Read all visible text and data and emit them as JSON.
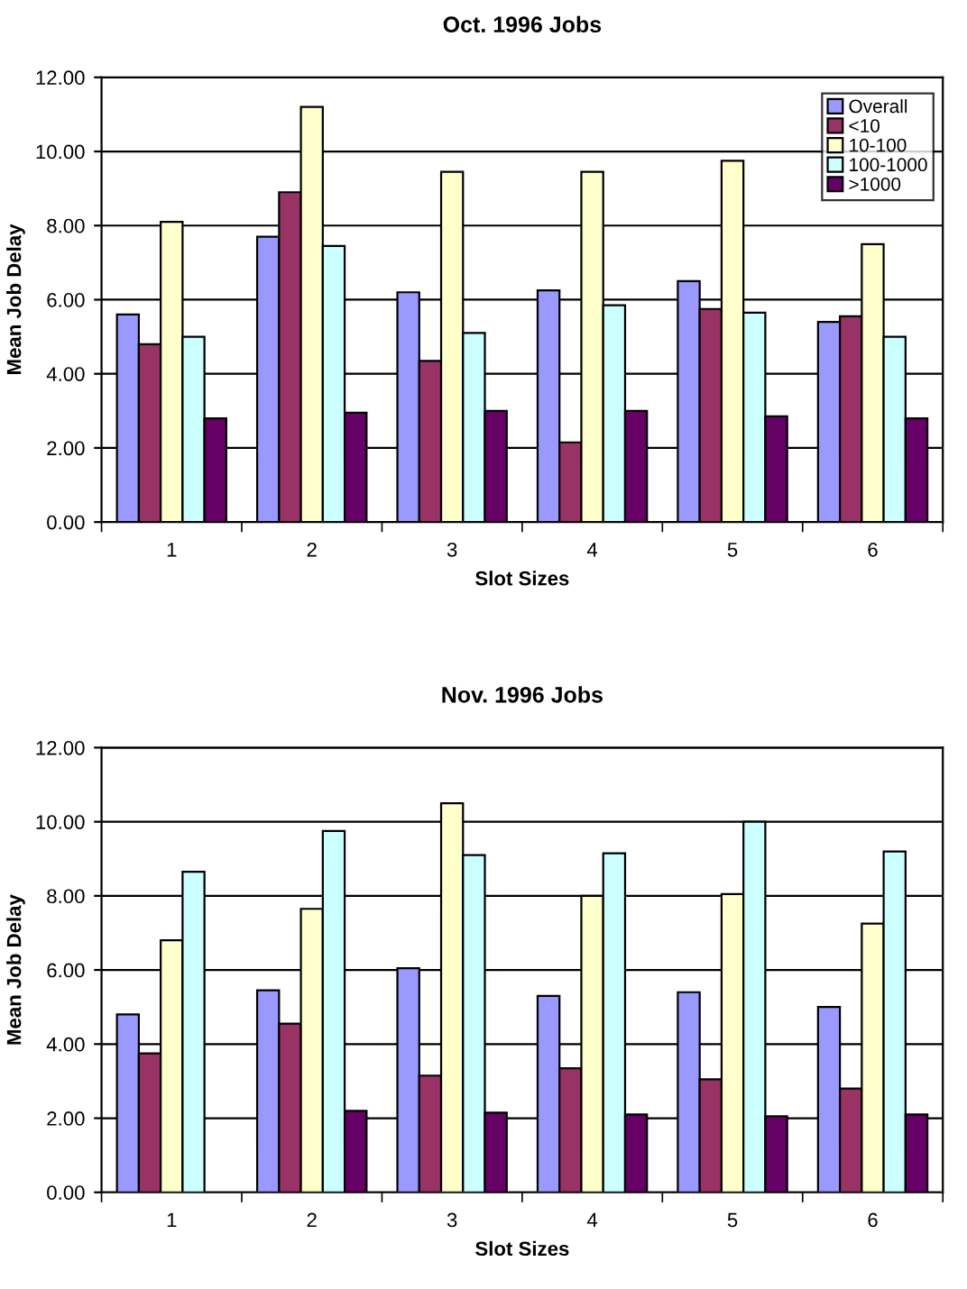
{
  "chart_data": [
    {
      "type": "bar",
      "title": "Oct. 1996 Jobs",
      "xlabel": "Slot Sizes",
      "ylabel": "Mean Job Delay",
      "categories": [
        "1",
        "2",
        "3",
        "4",
        "5",
        "6"
      ],
      "series": [
        {
          "name": "Overall",
          "color": "#9999ff",
          "values": [
            5.6,
            7.7,
            6.2,
            6.25,
            6.5,
            5.4
          ]
        },
        {
          "name": "<10",
          "color": "#993366",
          "values": [
            4.8,
            8.9,
            4.35,
            2.15,
            5.75,
            5.55
          ]
        },
        {
          "name": "10-100",
          "color": "#ffffcc",
          "values": [
            8.1,
            11.2,
            9.45,
            9.45,
            9.75,
            7.5
          ]
        },
        {
          "name": "100-1000",
          "color": "#ccffff",
          "values": [
            5.0,
            7.45,
            5.1,
            5.85,
            5.65,
            5.0
          ]
        },
        {
          "name": ">1000",
          "color": "#660066",
          "values": [
            2.8,
            2.95,
            3.0,
            3.0,
            2.85,
            2.8
          ]
        }
      ],
      "ylim": [
        0,
        12
      ],
      "yticks": [
        {
          "value": 0,
          "label": "0.00"
        },
        {
          "value": 2,
          "label": "2.00"
        },
        {
          "value": 4,
          "label": "4.00"
        },
        {
          "value": 6,
          "label": "6.00"
        },
        {
          "value": 8,
          "label": "8.00"
        },
        {
          "value": 10,
          "label": "10.00"
        },
        {
          "value": 12,
          "label": "12.00"
        }
      ],
      "grid": "y",
      "legend": "top right"
    },
    {
      "type": "bar",
      "title": "Nov. 1996 Jobs",
      "xlabel": "Slot Sizes",
      "ylabel": "Mean Job Delay",
      "categories": [
        "1",
        "2",
        "3",
        "4",
        "5",
        "6"
      ],
      "series": [
        {
          "color": "#9999ff",
          "values": [
            4.8,
            5.45,
            6.05,
            5.3,
            5.4,
            5.0
          ]
        },
        {
          "color": "#993366",
          "values": [
            3.75,
            4.55,
            3.15,
            3.35,
            3.05,
            2.8
          ]
        },
        {
          "color": "#ffffcc",
          "values": [
            6.8,
            7.65,
            10.5,
            8.0,
            8.05,
            7.25
          ]
        },
        {
          "color": "#ccffff",
          "values": [
            8.65,
            9.75,
            9.1,
            9.15,
            10.0,
            9.2
          ]
        },
        {
          "color": "#660066",
          "values": [
            null,
            2.2,
            2.15,
            2.1,
            2.05,
            2.1
          ]
        }
      ],
      "ylim": [
        0,
        12
      ],
      "yticks": [
        {
          "value": 0,
          "label": "0.00"
        },
        {
          "value": 2,
          "label": "2.00"
        },
        {
          "value": 4,
          "label": "4.00"
        },
        {
          "value": 6,
          "label": "6.00"
        },
        {
          "value": 8,
          "label": "8.00"
        },
        {
          "value": 10,
          "label": "10.00"
        },
        {
          "value": 12,
          "label": "12.00"
        }
      ],
      "grid": "y"
    }
  ]
}
